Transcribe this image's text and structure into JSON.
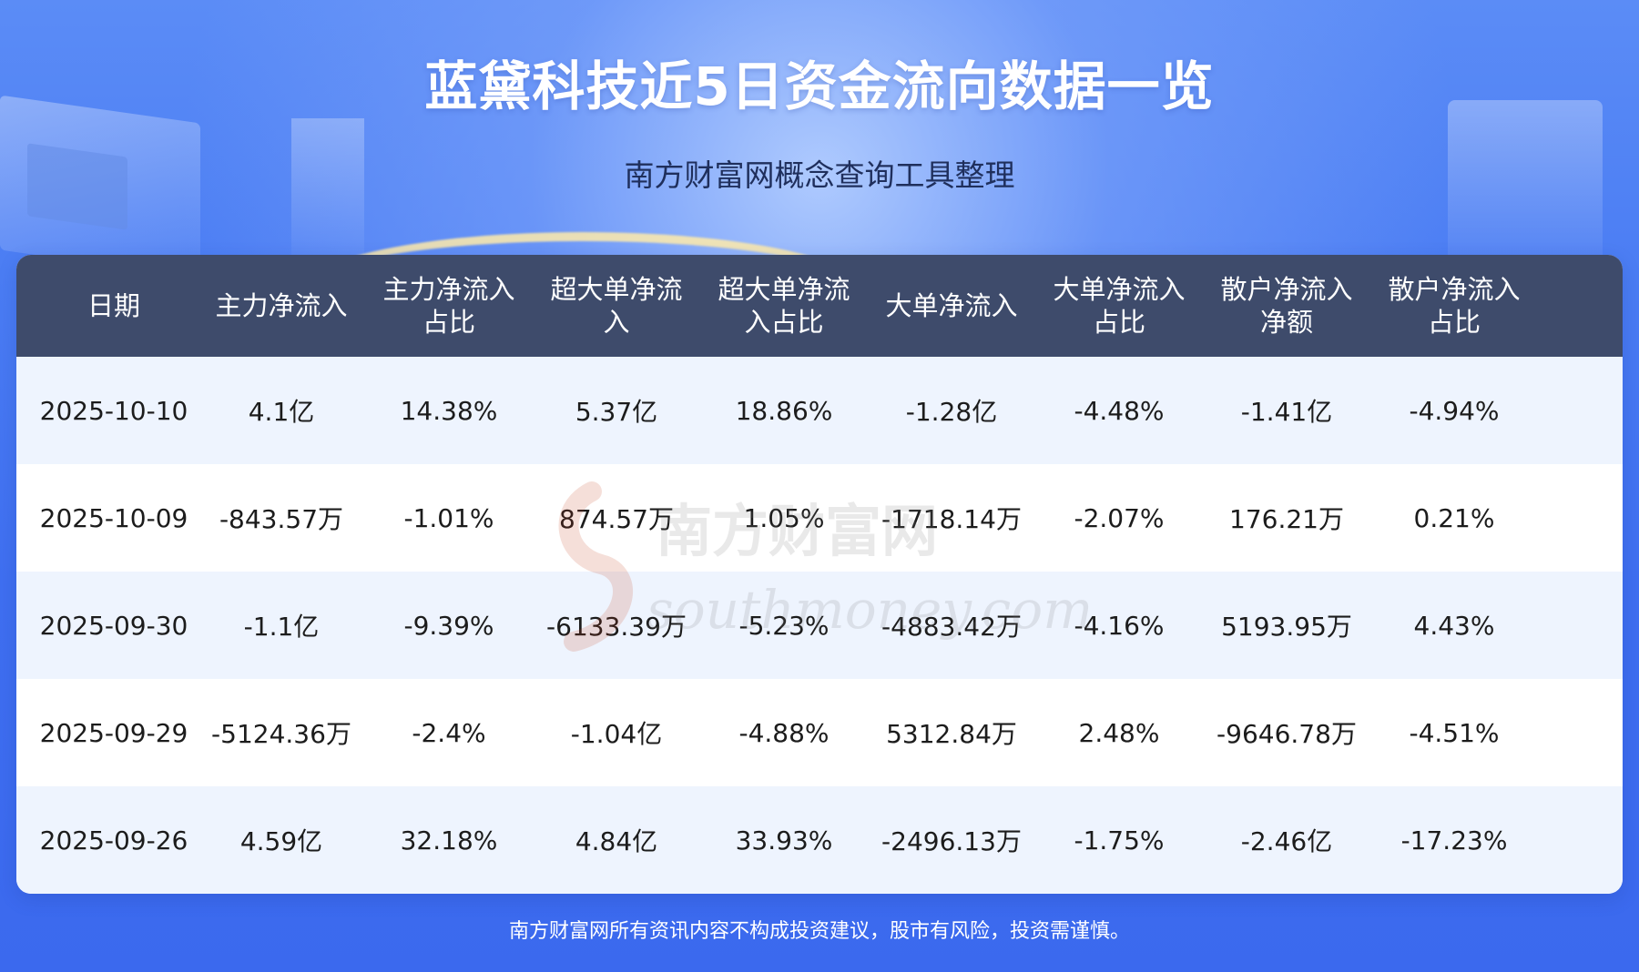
{
  "header": {
    "title": "蓝黛科技近5日资金流向数据一览",
    "subtitle": "南方财富网概念查询工具整理"
  },
  "table": {
    "columns": [
      "日期",
      "主力净流入",
      "主力净流入\n占比",
      "超大单净流\n入",
      "超大单净流\n入占比",
      "大单净流入",
      "大单净流入\n占比",
      "散户净流入\n净额",
      "散户净流入\n占比"
    ],
    "rows": [
      [
        "2025-10-10",
        "4.1亿",
        "14.38%",
        "5.37亿",
        "18.86%",
        "-1.28亿",
        "-4.48%",
        "-1.41亿",
        "-4.94%"
      ],
      [
        "2025-10-09",
        "-843.57万",
        "-1.01%",
        "874.57万",
        "1.05%",
        "-1718.14万",
        "-2.07%",
        "176.21万",
        "0.21%"
      ],
      [
        "2025-09-30",
        "-1.1亿",
        "-9.39%",
        "-6133.39万",
        "-5.23%",
        "-4883.42万",
        "-4.16%",
        "5193.95万",
        "4.43%"
      ],
      [
        "2025-09-29",
        "-5124.36万",
        "-2.4%",
        "-1.04亿",
        "-4.88%",
        "5312.84万",
        "2.48%",
        "-9646.78万",
        "-4.51%"
      ],
      [
        "2025-09-26",
        "4.59亿",
        "32.18%",
        "4.84亿",
        "33.93%",
        "-2496.13万",
        "-1.75%",
        "-2.46亿",
        "-17.23%"
      ]
    ]
  },
  "watermark": {
    "cn": "南方财富网",
    "en": "southmoney.com"
  },
  "footer": {
    "disclaimer": "南方财富网所有资讯内容不构成投资建议，股市有风险，投资需谨慎。"
  },
  "colors": {
    "background": "#3f6ff0",
    "table_header": "#3e4b6b",
    "row_alt": "#eef4fe",
    "row_plain": "#ffffff"
  }
}
